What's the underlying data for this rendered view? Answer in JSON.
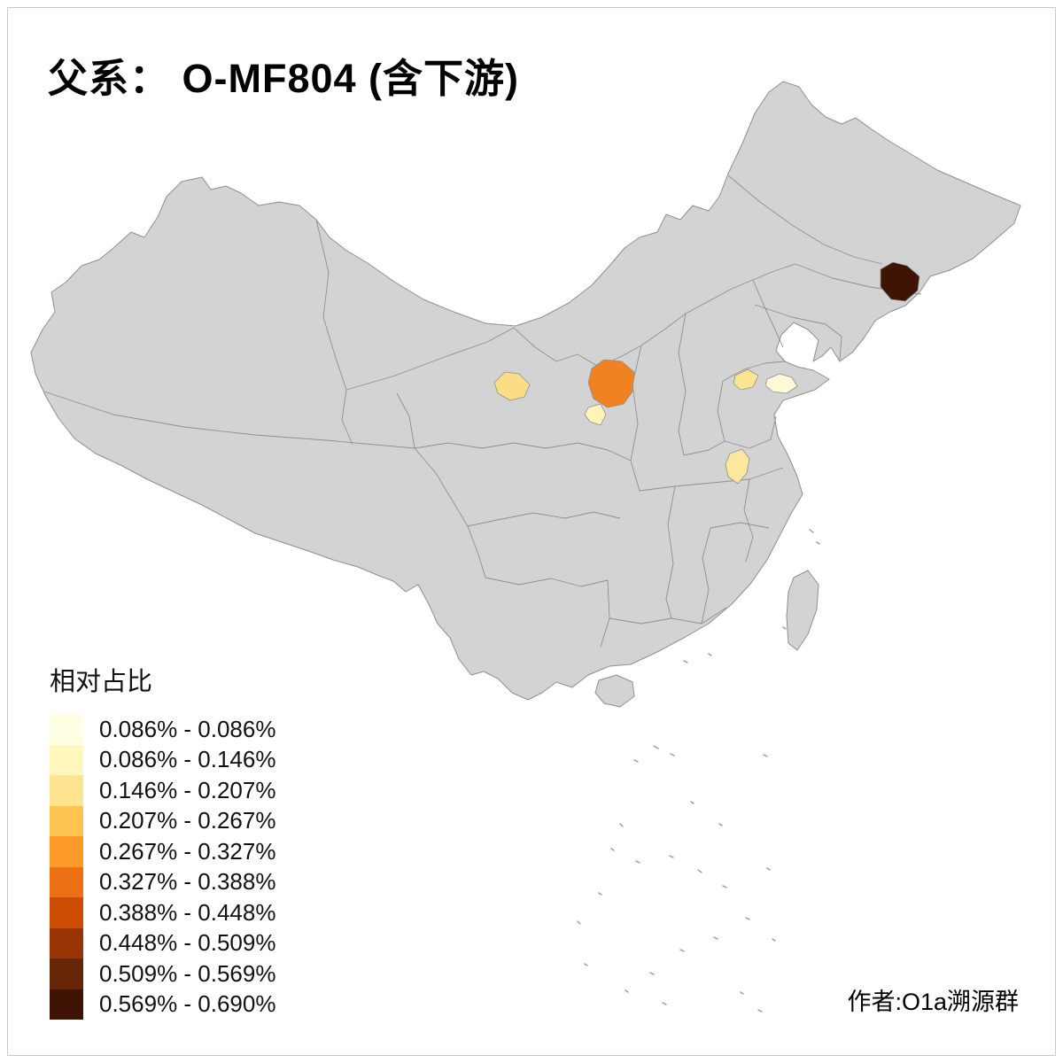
{
  "title": "父系： O-MF804 (含下游)",
  "author": "作者:O1a溯源群",
  "legend": {
    "title": "相对占比",
    "items": [
      {
        "label": "0.086% - 0.086%",
        "color": "#FFFFE3"
      },
      {
        "label": "0.086% - 0.146%",
        "color": "#FFF7BC"
      },
      {
        "label": "0.146% - 0.207%",
        "color": "#FEE391"
      },
      {
        "label": "0.207% - 0.267%",
        "color": "#FEC44F"
      },
      {
        "label": "0.267% - 0.327%",
        "color": "#FB9A29"
      },
      {
        "label": "0.327% - 0.388%",
        "color": "#EC7014"
      },
      {
        "label": "0.388% - 0.448%",
        "color": "#CC4C02"
      },
      {
        "label": "0.448% - 0.509%",
        "color": "#993404"
      },
      {
        "label": "0.509% - 0.569%",
        "color": "#662506"
      },
      {
        "label": "0.569% - 0.690%",
        "color": "#401405"
      }
    ]
  },
  "map": {
    "land_color": "#D3D3D3",
    "border_color": "#8F8F8F",
    "regions": [
      {
        "name": "far-northeast-region",
        "color": "#401405"
      },
      {
        "name": "north-central-region",
        "color": "#F08221"
      },
      {
        "name": "northwest-region",
        "color": "#FBDD86"
      },
      {
        "name": "north-central-small-region",
        "color": "#FFF3B6"
      },
      {
        "name": "east-region-west-patch",
        "color": "#FAE590"
      },
      {
        "name": "east-peninsula-region",
        "color": "#FEFAD8"
      },
      {
        "name": "central-east-region",
        "color": "#FBE89C"
      }
    ]
  }
}
